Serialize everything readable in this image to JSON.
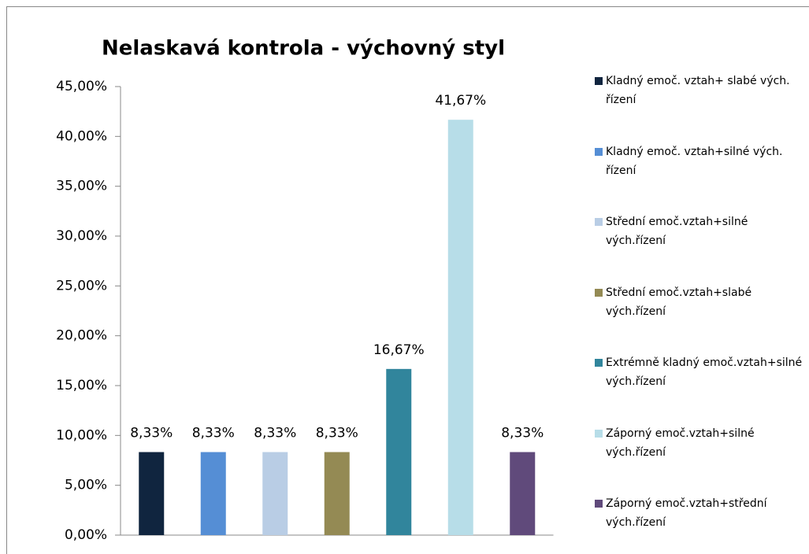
{
  "chart_data": {
    "type": "bar",
    "title": "Nelaskavá kontrola - výchovný styl",
    "series": [
      {
        "name": "Kladný emoč. vztah+ slabé vých. řízení",
        "color": "#10253f",
        "values": [
          8.33
        ],
        "value_labels": [
          "8,33%"
        ]
      },
      {
        "name": "Kladný emoč. vztah+silné vých. řízení",
        "color": "#558ed5",
        "values": [
          8.33
        ],
        "value_labels": [
          "8,33%"
        ]
      },
      {
        "name": "Střední emoč.vztah+silné vých.řízení",
        "color": "#b9cde5",
        "values": [
          8.33
        ],
        "value_labels": [
          "8,33%"
        ]
      },
      {
        "name": "Střední emoč.vztah+slabé vých.řízení",
        "color": "#948a54",
        "values": [
          8.33
        ],
        "value_labels": [
          "8,33%"
        ]
      },
      {
        "name": "Extrémně kladný emoč.vztah+silné vých.řízení",
        "color": "#31859c",
        "values": [
          16.67
        ],
        "value_labels": [
          "16,67%"
        ]
      },
      {
        "name": "Záporný emoč.vztah+silné vých.řízení",
        "color": "#b7dde8",
        "values": [
          41.67
        ],
        "value_labels": [
          "41,67%"
        ]
      },
      {
        "name": "Záporný emoč.vztah+střední vých.řízení",
        "color": "#604a7b",
        "values": [
          8.33
        ],
        "value_labels": [
          "8,33%"
        ]
      }
    ],
    "ylim": [
      0,
      45
    ],
    "yticks": [
      {
        "value": 0,
        "label": "0,00%"
      },
      {
        "value": 5,
        "label": "5,00%"
      },
      {
        "value": 10,
        "label": "10,00%"
      },
      {
        "value": 15,
        "label": "15,00%"
      },
      {
        "value": 20,
        "label": "20,00%"
      },
      {
        "value": 25,
        "label": "25,00%"
      },
      {
        "value": 30,
        "label": "30,00%"
      },
      {
        "value": 35,
        "label": "35,00%"
      },
      {
        "value": 40,
        "label": "40,00%"
      },
      {
        "value": 45,
        "label": "45,00%"
      }
    ],
    "grid": false,
    "legend": "right"
  }
}
